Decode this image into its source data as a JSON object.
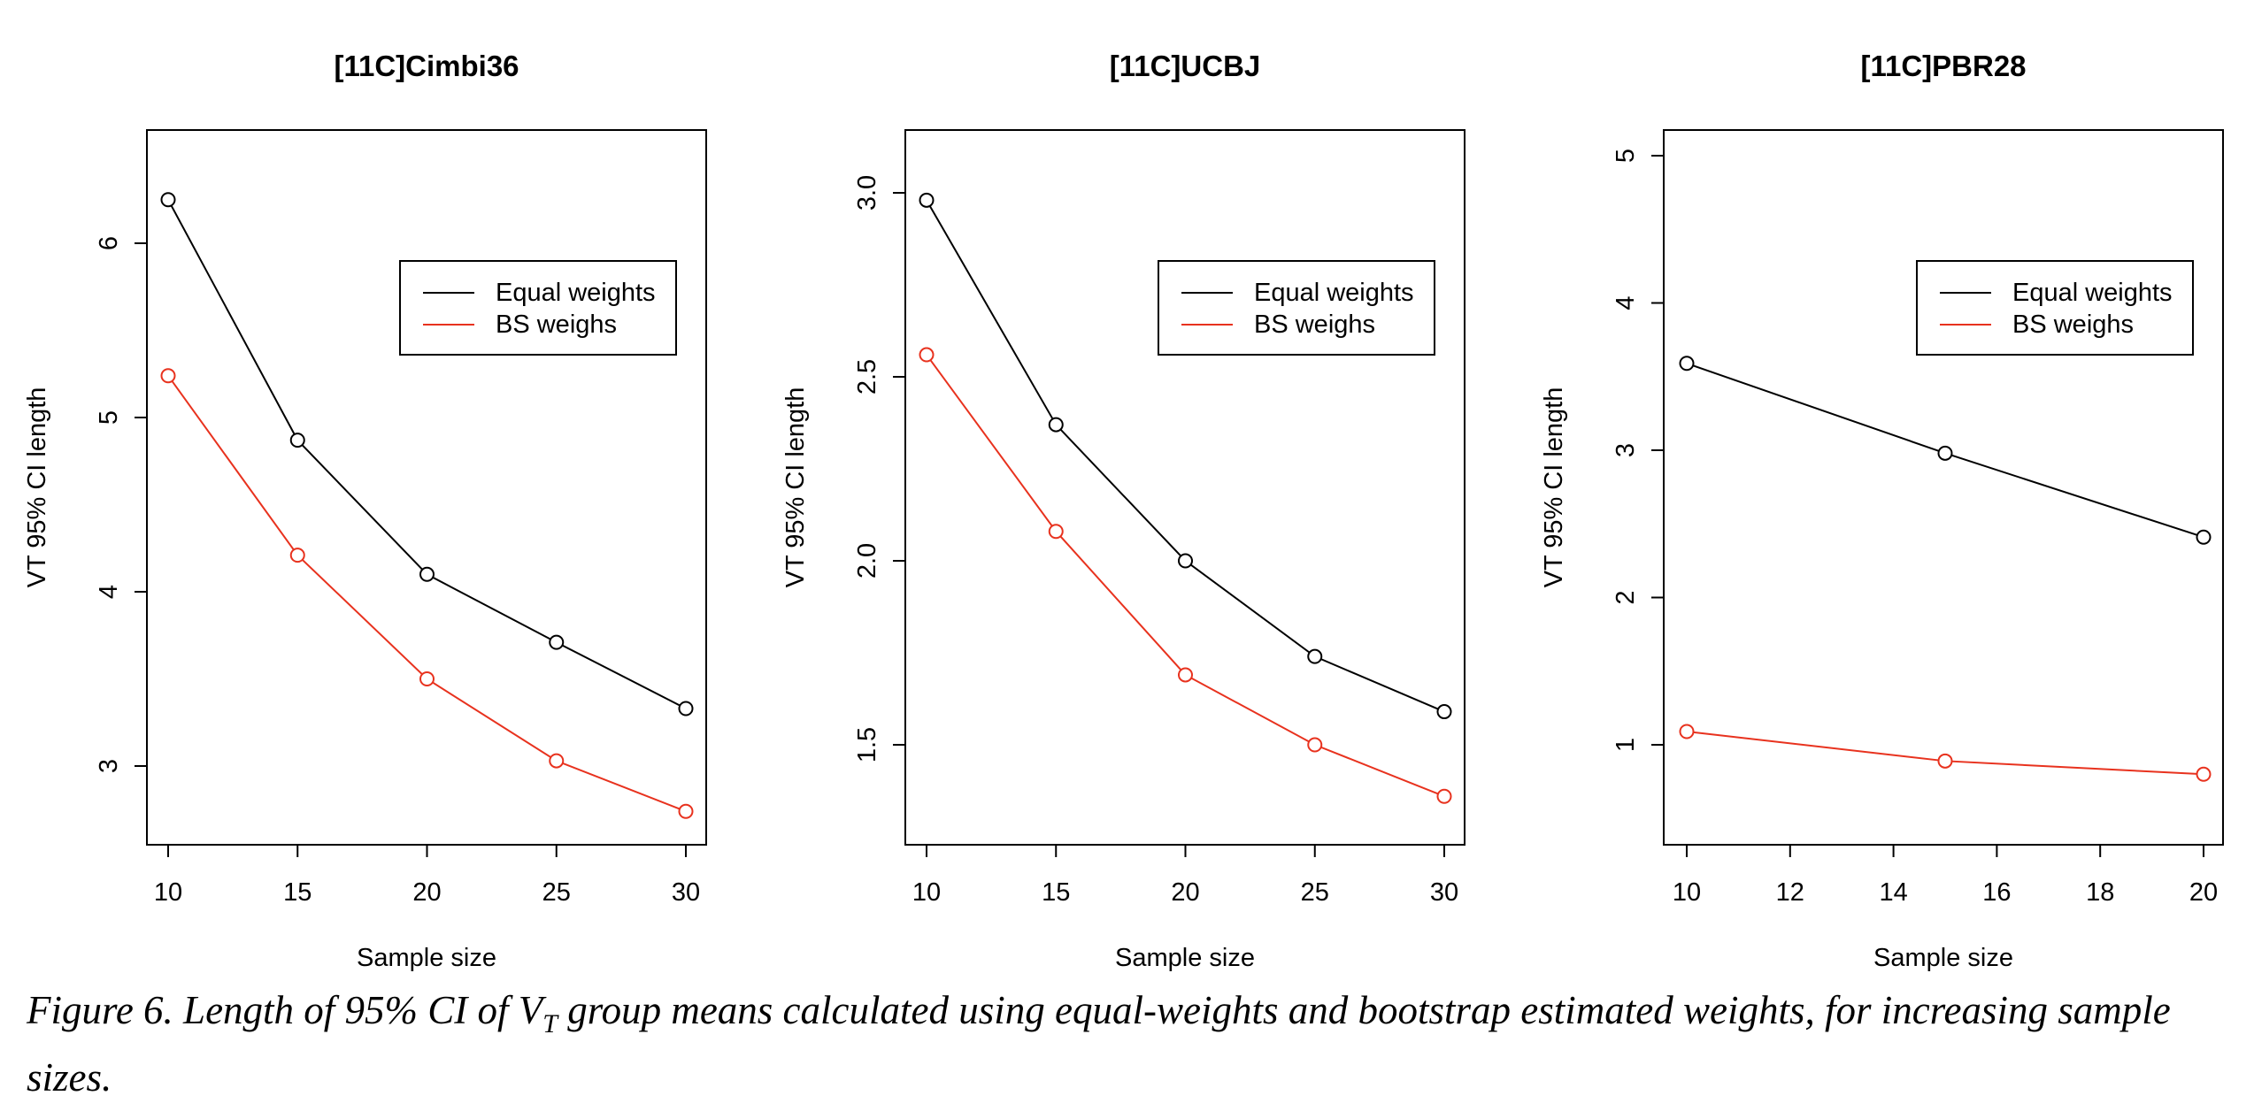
{
  "chart_data": [
    {
      "type": "line",
      "title": "[11C]Cimbi36",
      "xlabel": "Sample size",
      "ylabel": "VT 95% CI length",
      "xlim": [
        10,
        30
      ],
      "ylim": [
        2.55,
        6.6
      ],
      "xticks": [
        10,
        15,
        20,
        25,
        30
      ],
      "yticks": [
        3,
        4,
        5,
        6
      ],
      "x": [
        10,
        15,
        20,
        25,
        30
      ],
      "series": [
        {
          "name": "Equal weights",
          "color": "#000000",
          "values": [
            6.25,
            4.87,
            4.1,
            3.71,
            3.33
          ]
        },
        {
          "name": "BS weighs",
          "color": "#e8321e",
          "values": [
            5.24,
            4.21,
            3.5,
            3.03,
            2.74
          ]
        }
      ],
      "legend": "top-right"
    },
    {
      "type": "line",
      "title": "[11C]UCBJ",
      "xlabel": "Sample size",
      "ylabel": "VT 95% CI length",
      "xlim": [
        10,
        30
      ],
      "ylim": [
        1.23,
        3.17
      ],
      "xticks": [
        10,
        15,
        20,
        25,
        30
      ],
      "yticks": [
        1.5,
        2.0,
        2.5,
        3.0
      ],
      "yticklabels": [
        "1.5",
        "2.0",
        "2.5",
        "3.0"
      ],
      "x": [
        10,
        15,
        20,
        25,
        30
      ],
      "series": [
        {
          "name": "Equal weights",
          "color": "#000000",
          "values": [
            2.98,
            2.37,
            2.0,
            1.74,
            1.59
          ]
        },
        {
          "name": "BS weighs",
          "color": "#e8321e",
          "values": [
            2.56,
            2.08,
            1.69,
            1.5,
            1.36
          ]
        }
      ],
      "legend": "top-right"
    },
    {
      "type": "line",
      "title": "[11C]PBR28",
      "xlabel": "Sample size",
      "ylabel": "VT 95% CI length",
      "xlim": [
        10,
        20
      ],
      "ylim": [
        0.32,
        5.18
      ],
      "xticks": [
        10,
        12,
        14,
        16,
        18,
        20
      ],
      "yticks": [
        1,
        2,
        3,
        4,
        5
      ],
      "x": [
        10,
        15,
        20
      ],
      "series": [
        {
          "name": "Equal weights",
          "color": "#000000",
          "values": [
            3.59,
            2.98,
            2.41
          ]
        },
        {
          "name": "BS weighs",
          "color": "#e8321e",
          "values": [
            1.09,
            0.89,
            0.8
          ]
        }
      ],
      "legend": "top-right"
    }
  ],
  "caption": {
    "prefix": "Figure 6. Length of 95% CI of V",
    "subscript": "T",
    "suffix": " group means calculated using equal-weights and bootstrap estimated weights, for increasing sample sizes."
  }
}
